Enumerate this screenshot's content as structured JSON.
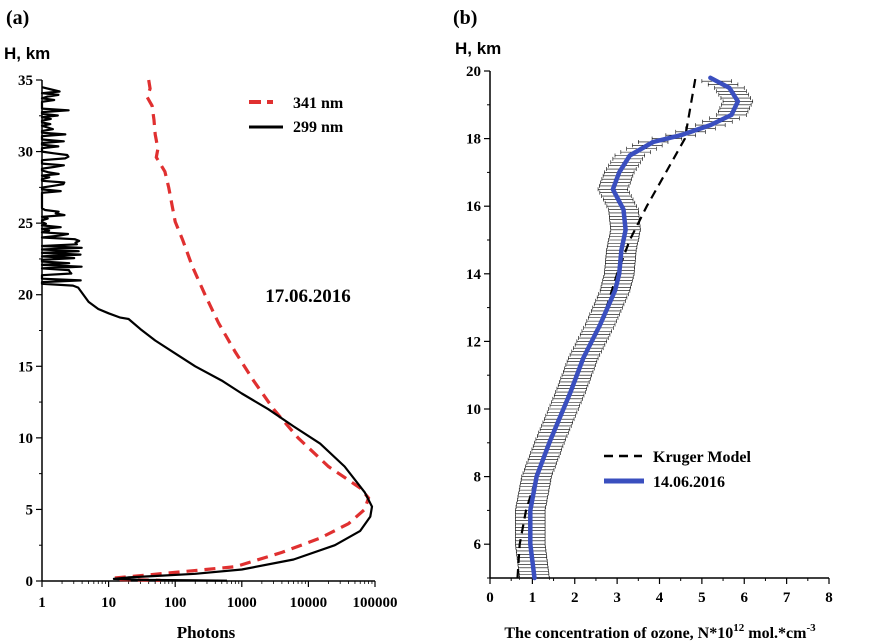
{
  "panels": {
    "a": {
      "label": "(a)"
    },
    "b": {
      "label": "(b)"
    }
  },
  "colors": {
    "axis": "#000000",
    "series_341": "#e03030",
    "series_299": "#000000",
    "kruger": "#000000",
    "ozone": "#3a4fbf"
  },
  "chart_data": [
    {
      "id": "a",
      "type": "line",
      "ylabel": "H, km",
      "xlabel": "Photons",
      "xscale": "log",
      "xlim": [
        1,
        100000
      ],
      "ylim": [
        0,
        35
      ],
      "xticks": [
        1,
        10,
        100,
        1000,
        10000,
        100000
      ],
      "xtick_labels": [
        "1",
        "10",
        "100",
        "1000",
        "10000",
        "100000"
      ],
      "yticks": [
        0,
        5,
        10,
        15,
        20,
        25,
        30,
        35
      ],
      "ytick_labels": [
        "0",
        "5",
        "10",
        "15",
        "20",
        "25",
        "30",
        "35"
      ],
      "annotation": "17.06.2016",
      "legend": "top-right",
      "series": [
        {
          "name": "341 nm",
          "style": "dashed",
          "points": [
            [
              40,
              35
            ],
            [
              42,
              34.4
            ],
            [
              38,
              33.8
            ],
            [
              45,
              33.2
            ],
            [
              48,
              32.2
            ],
            [
              50,
              31.2
            ],
            [
              55,
              30.2
            ],
            [
              52,
              29.6
            ],
            [
              70,
              28.6
            ],
            [
              80,
              27.5
            ],
            [
              90,
              26.2
            ],
            [
              100,
              25.1
            ],
            [
              130,
              23.8
            ],
            [
              180,
              22
            ],
            [
              280,
              20
            ],
            [
              450,
              18
            ],
            [
              800,
              16
            ],
            [
              1500,
              14
            ],
            [
              3000,
              12
            ],
            [
              7000,
              10
            ],
            [
              20000,
              8
            ],
            [
              60000,
              6.5
            ],
            [
              80000,
              5.8
            ],
            [
              70000,
              5
            ],
            [
              40000,
              4
            ],
            [
              15000,
              3
            ],
            [
              4000,
              2
            ],
            [
              800,
              1
            ],
            [
              100,
              0.6
            ],
            [
              20,
              0.3
            ],
            [
              12,
              0.2
            ],
            [
              15,
              0.1
            ],
            [
              60,
              0.05
            ]
          ]
        },
        {
          "name": "299 nm",
          "style": "solid",
          "points": [
            [
              3.5,
              20.5
            ],
            [
              5,
              19.5
            ],
            [
              7,
              19
            ],
            [
              10,
              18.7
            ],
            [
              15,
              18.4
            ],
            [
              20,
              18.3
            ],
            [
              30,
              17.6
            ],
            [
              50,
              16.8
            ],
            [
              100,
              15.9
            ],
            [
              200,
              15
            ],
            [
              500,
              14
            ],
            [
              1000,
              13.1
            ],
            [
              2500,
              12
            ],
            [
              6000,
              10.8
            ],
            [
              15000,
              9.6
            ],
            [
              35000,
              8
            ],
            [
              70000,
              6.2
            ],
            [
              90000,
              5.2
            ],
            [
              85000,
              4.5
            ],
            [
              60000,
              3.5
            ],
            [
              25000,
              2.5
            ],
            [
              6000,
              1.5
            ],
            [
              1000,
              0.8
            ],
            [
              200,
              0.5
            ],
            [
              50,
              0.35
            ],
            [
              20,
              0.25
            ],
            [
              12,
              0.15
            ],
            [
              30,
              0.08
            ],
            [
              200,
              0.04
            ],
            [
              600,
              0.02
            ]
          ]
        }
      ]
    },
    {
      "id": "b",
      "type": "line",
      "ylabel": "H, km",
      "xlabel": "The concentration of ozone, N*10",
      "xlabel_exp": "12",
      "xlabel_tail": " mol.*cm",
      "xlabel_tail_exp": "-3",
      "xlim": [
        0,
        8
      ],
      "ylim": [
        5,
        20
      ],
      "xticks": [
        0,
        1,
        2,
        3,
        4,
        5,
        6,
        7,
        8
      ],
      "xtick_labels": [
        "0",
        "1",
        "2",
        "3",
        "4",
        "5",
        "6",
        "7",
        "8"
      ],
      "yticks": [
        6,
        8,
        10,
        12,
        14,
        16,
        18,
        20
      ],
      "ytick_labels": [
        "6",
        "8",
        "10",
        "12",
        "14",
        "16",
        "18",
        "20"
      ],
      "legend": "center-right",
      "series": [
        {
          "name": "Kruger Model",
          "style": "dashed",
          "x": [
            0.65,
            0.7,
            0.85,
            1.1,
            1.4,
            1.75,
            2.05,
            2.4,
            2.75,
            3.0,
            3.3,
            3.7,
            4.15,
            4.6,
            4.85
          ],
          "y": [
            5,
            6,
            7,
            8,
            9,
            10,
            11,
            12,
            13,
            14,
            15,
            16,
            17,
            18,
            19.8
          ]
        },
        {
          "name": "14.06.2016",
          "style": "solid",
          "x": [
            1.05,
            0.95,
            0.95,
            1.1,
            1.4,
            1.9,
            2.2,
            2.6,
            2.95,
            3.05,
            3.1,
            3.2,
            3.15,
            2.9,
            3.05,
            3.3,
            3.85,
            4.5,
            5.2,
            5.7,
            5.85,
            5.65,
            5.2
          ],
          "y": [
            5,
            6,
            7,
            8,
            9,
            10.5,
            11.5,
            12.5,
            13.5,
            14,
            14.7,
            15.3,
            15.9,
            16.5,
            17,
            17.5,
            17.9,
            18.1,
            18.4,
            18.7,
            19.1,
            19.5,
            19.8
          ],
          "error": 0.35
        }
      ]
    }
  ]
}
